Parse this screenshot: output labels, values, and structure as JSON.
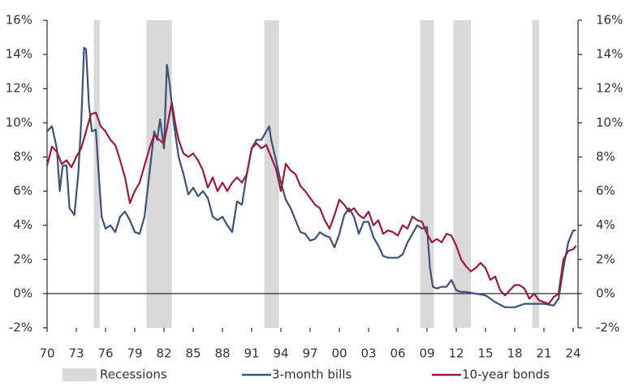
{
  "chart_data": {
    "type": "line",
    "xlim": [
      1970,
      2024.5
    ],
    "xticks": [
      {
        "value": 1970,
        "label": "70"
      },
      {
        "value": 1973,
        "label": "73"
      },
      {
        "value": 1976,
        "label": "76"
      },
      {
        "value": 1979,
        "label": "79"
      },
      {
        "value": 1982,
        "label": "82"
      },
      {
        "value": 1985,
        "label": "85"
      },
      {
        "value": 1988,
        "label": "88"
      },
      {
        "value": 1991,
        "label": "91"
      },
      {
        "value": 1994,
        "label": "94"
      },
      {
        "value": 1997,
        "label": "97"
      },
      {
        "value": 2000,
        "label": "00"
      },
      {
        "value": 2003,
        "label": "03"
      },
      {
        "value": 2006,
        "label": "06"
      },
      {
        "value": 2009,
        "label": "09"
      },
      {
        "value": 2012,
        "label": "12"
      },
      {
        "value": 2015,
        "label": "15"
      },
      {
        "value": 2018,
        "label": "18"
      },
      {
        "value": 2021,
        "label": "21"
      },
      {
        "value": 2024,
        "label": "24"
      }
    ],
    "ylim": [
      -2,
      16
    ],
    "yticks": [
      {
        "value": -2,
        "label": "-2%"
      },
      {
        "value": 0,
        "label": "0%"
      },
      {
        "value": 2,
        "label": "2%"
      },
      {
        "value": 4,
        "label": "4%"
      },
      {
        "value": 6,
        "label": "6%"
      },
      {
        "value": 8,
        "label": "8%"
      },
      {
        "value": 10,
        "label": "10%"
      },
      {
        "value": 12,
        "label": "12%"
      },
      {
        "value": 14,
        "label": "14%"
      },
      {
        "value": 16,
        "label": "16%"
      }
    ],
    "y2lim": [
      -2,
      16
    ],
    "y2ticks": [
      {
        "value": -2,
        "label": "-2%"
      },
      {
        "value": 0,
        "label": "0%"
      },
      {
        "value": 2,
        "label": "2%"
      },
      {
        "value": 4,
        "label": "4%"
      },
      {
        "value": 6,
        "label": "6%"
      },
      {
        "value": 8,
        "label": "8%"
      },
      {
        "value": 10,
        "label": "10%"
      },
      {
        "value": 12,
        "label": "12%"
      },
      {
        "value": 14,
        "label": "14%"
      },
      {
        "value": 16,
        "label": "16%"
      }
    ],
    "recessions": {
      "name": "Recessions",
      "color": "#d9d9d9",
      "ranges": [
        [
          1974.8,
          1975.4
        ],
        [
          1980.2,
          1982.8
        ],
        [
          1992.3,
          1993.8
        ],
        [
          2008.3,
          2009.7
        ],
        [
          2011.7,
          2013.5
        ],
        [
          2019.8,
          2020.5
        ]
      ]
    },
    "series": [
      {
        "name": "3-month bills",
        "color": "#3d5277",
        "x": [
          1970.0,
          1970.5,
          1971.0,
          1971.3,
          1971.6,
          1972.0,
          1972.3,
          1972.8,
          1973.2,
          1973.5,
          1973.8,
          1974.0,
          1974.3,
          1974.6,
          1975.0,
          1975.3,
          1975.6,
          1976.0,
          1976.5,
          1977.0,
          1977.5,
          1978.0,
          1978.5,
          1979.0,
          1979.5,
          1980.0,
          1980.5,
          1981.0,
          1981.3,
          1981.6,
          1982.0,
          1982.3,
          1982.6,
          1983.0,
          1983.5,
          1984.0,
          1984.5,
          1985.0,
          1985.5,
          1986.0,
          1986.5,
          1987.0,
          1987.5,
          1988.0,
          1988.5,
          1989.0,
          1989.5,
          1990.0,
          1990.5,
          1991.0,
          1991.5,
          1992.0,
          1992.5,
          1992.8,
          1993.0,
          1993.5,
          1994.0,
          1994.5,
          1995.0,
          1995.5,
          1996.0,
          1996.5,
          1997.0,
          1997.5,
          1998.0,
          1998.5,
          1999.0,
          1999.5,
          2000.0,
          2000.5,
          2001.0,
          2001.5,
          2002.0,
          2002.5,
          2003.0,
          2003.5,
          2004.0,
          2004.5,
          2005.0,
          2005.5,
          2006.0,
          2006.5,
          2007.0,
          2007.5,
          2008.0,
          2008.5,
          2009.0,
          2009.3,
          2009.6,
          2010.0,
          2010.5,
          2011.0,
          2011.5,
          2012.0,
          2012.5,
          2013.0,
          2014.0,
          2015.0,
          2016.0,
          2017.0,
          2018.0,
          2019.0,
          2020.0,
          2021.0,
          2022.0,
          2022.5,
          2023.0,
          2023.5,
          2024.0,
          2024.3
        ],
        "values": [
          9.5,
          9.8,
          8.5,
          6.0,
          7.5,
          7.5,
          5.0,
          4.6,
          7.0,
          10,
          14.4,
          14.3,
          11,
          9.5,
          9.6,
          7,
          4.5,
          3.8,
          4,
          3.6,
          4.5,
          4.8,
          4.3,
          3.6,
          3.5,
          4.5,
          7,
          9.5,
          9,
          10.2,
          8.5,
          13.4,
          12.2,
          10,
          8,
          7,
          5.8,
          6.2,
          5.7,
          6,
          5.6,
          4.5,
          4.3,
          4.5,
          4.0,
          3.6,
          5.4,
          5.2,
          7,
          8.5,
          9,
          9,
          9.5,
          9.8,
          9.0,
          7.8,
          6.5,
          5.5,
          5.0,
          4.3,
          3.6,
          3.5,
          3.1,
          3.2,
          3.6,
          3.4,
          3.3,
          2.7,
          3.5,
          4.6,
          5.0,
          4.5,
          3.5,
          4.2,
          4.2,
          3.3,
          2.8,
          2.2,
          2.1,
          2.1,
          2.1,
          2.3,
          3.0,
          3.5,
          4.0,
          3.8,
          3.9,
          1.5,
          0.4,
          0.3,
          0.4,
          0.4,
          0.8,
          0.2,
          0.1,
          0.1,
          0.0,
          -0.1,
          -0.5,
          -0.8,
          -0.8,
          -0.6,
          -0.6,
          -0.6,
          -0.7,
          -0.3,
          1.5,
          3.0,
          3.7,
          3.7
        ]
      },
      {
        "name": "10-year bonds",
        "color": "#9b1b3a",
        "x": [
          1970.0,
          1970.5,
          1971.0,
          1971.5,
          1972.0,
          1972.5,
          1973.0,
          1973.5,
          1974.0,
          1974.5,
          1975.0,
          1975.5,
          1976.0,
          1976.5,
          1977.0,
          1977.5,
          1978.0,
          1978.5,
          1979.0,
          1979.5,
          1980.0,
          1980.5,
          1981.0,
          1981.5,
          1982.0,
          1982.5,
          1982.8,
          1983.2,
          1983.5,
          1984.0,
          1984.5,
          1985.0,
          1985.5,
          1986.0,
          1986.5,
          1987.0,
          1987.5,
          1988.0,
          1988.5,
          1989.0,
          1989.5,
          1990.0,
          1990.5,
          1991.0,
          1991.5,
          1992.0,
          1992.5,
          1993.0,
          1993.5,
          1994.0,
          1994.5,
          1995.0,
          1995.5,
          1996.0,
          1996.5,
          1997.0,
          1997.5,
          1998.0,
          1998.5,
          1999.0,
          1999.5,
          2000.0,
          2000.5,
          2001.0,
          2001.5,
          2002.0,
          2002.5,
          2003.0,
          2003.5,
          2004.0,
          2004.5,
          2005.0,
          2005.5,
          2006.0,
          2006.5,
          2007.0,
          2007.5,
          2008.0,
          2008.5,
          2009.0,
          2009.5,
          2010.0,
          2010.5,
          2011.0,
          2011.5,
          2012.0,
          2012.5,
          2013.0,
          2013.5,
          2014.0,
          2014.5,
          2015.0,
          2015.5,
          2016.0,
          2016.5,
          2017.0,
          2017.5,
          2018.0,
          2018.5,
          2019.0,
          2019.5,
          2020.0,
          2020.5,
          2021.0,
          2021.5,
          2022.0,
          2022.5,
          2023.0,
          2023.5,
          2024.0,
          2024.3
        ],
        "values": [
          7.5,
          8.6,
          8.3,
          7.6,
          7.8,
          7.4,
          8.0,
          8.5,
          9.5,
          10.5,
          10.6,
          9.8,
          9.5,
          9.0,
          8.7,
          7.8,
          6.8,
          5.3,
          6.0,
          6.5,
          7.5,
          8.5,
          9.3,
          9.0,
          8.8,
          10.3,
          11.2,
          9.8,
          9.0,
          8.2,
          8.0,
          8.2,
          7.8,
          7.2,
          6.2,
          6.8,
          6.0,
          6.5,
          6.0,
          6.5,
          6.8,
          6.5,
          7.0,
          8.5,
          8.8,
          8.5,
          8.7,
          8.0,
          7.3,
          6.0,
          7.6,
          7.2,
          7.0,
          6.3,
          6.0,
          5.6,
          5.2,
          5.0,
          4.3,
          3.8,
          4.6,
          5.5,
          5.2,
          4.8,
          5.0,
          4.6,
          4.4,
          4.8,
          4.0,
          4.3,
          3.5,
          3.7,
          3.6,
          3.4,
          4.0,
          3.8,
          4.5,
          4.3,
          4.2,
          3.5,
          3.0,
          3.2,
          3.0,
          3.5,
          3.4,
          2.8,
          2.0,
          1.6,
          1.3,
          1.5,
          1.8,
          1.5,
          0.8,
          1.0,
          0.2,
          -0.1,
          0.2,
          0.5,
          0.5,
          0.3,
          -0.3,
          0.0,
          -0.4,
          -0.5,
          -0.6,
          -0.2,
          0.0,
          2.0,
          2.5,
          2.6,
          2.8
        ]
      }
    ]
  }
}
